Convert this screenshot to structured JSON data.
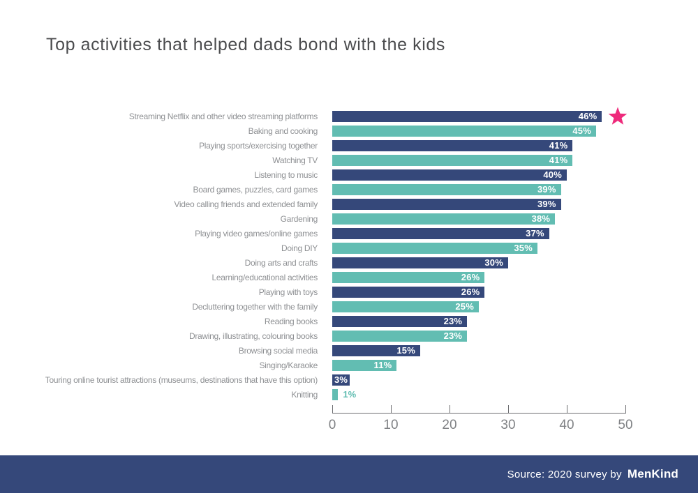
{
  "title": "Top activities that helped dads bond with the kids",
  "footer": {
    "source_prefix": "Source: 2020 survey by",
    "brand": "MenKind"
  },
  "colors": {
    "navy": "#35487a",
    "teal": "#62bdb2",
    "star_pink": "#ee2a7b",
    "footer_bg": "#35487a",
    "label_gray": "#8e9093",
    "axis_gray": "#6d6e71"
  },
  "icons": {
    "star": "star-icon"
  },
  "chart_data": {
    "type": "bar",
    "orientation": "horizontal",
    "title": "Top activities that helped dads bond with the kids",
    "xlabel": "",
    "ylabel": "",
    "xlim": [
      0,
      50
    ],
    "x_ticks": [
      0,
      10,
      20,
      30,
      40,
      50
    ],
    "grid": false,
    "legend": false,
    "value_label_suffix": "%",
    "bar_color_pattern": [
      "navy",
      "teal"
    ],
    "starred_index": 0,
    "categories": [
      "Streaming Netflix and other video streaming platforms",
      "Baking and cooking",
      "Playing sports/exercising together",
      "Watching TV",
      "Listening to music",
      "Board games, puzzles, card games",
      "Video calling friends and extended family",
      "Gardening",
      "Playing video games/online games",
      "Doing DIY",
      "Doing arts and crafts",
      "Learning/educational activities",
      "Playing with toys",
      "Decluttering together with the family",
      "Reading books",
      "Drawing, illustrating, colouring books",
      "Browsing social media",
      "Singing/Karaoke",
      "Touring online tourist attractions (museums, destinations that have this option)",
      "Knitting"
    ],
    "values": [
      46,
      45,
      41,
      41,
      40,
      39,
      39,
      38,
      37,
      35,
      30,
      26,
      26,
      25,
      23,
      23,
      15,
      11,
      3,
      1
    ]
  }
}
